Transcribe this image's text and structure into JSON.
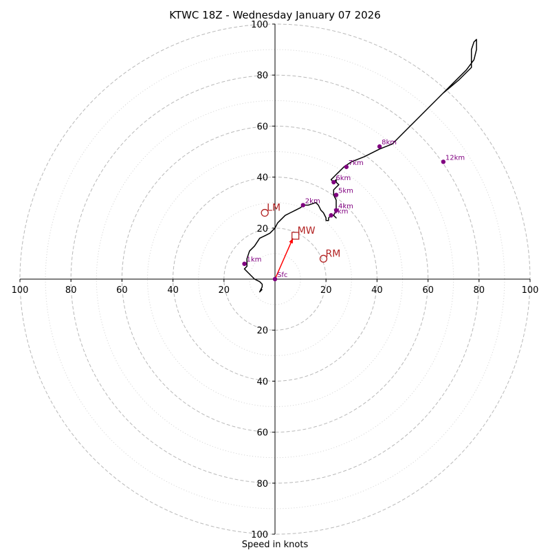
{
  "chart_data": {
    "type": "line",
    "title": "KTWC 18Z - Wednesday January 07 2026",
    "xlabel": "Speed in knots",
    "ylabel": "",
    "xlim": [
      -100,
      100
    ],
    "ylim": [
      -100,
      100
    ],
    "axis_tick_labels": [
      "100",
      "80",
      "60",
      "40",
      "20",
      "20",
      "40",
      "60",
      "80",
      "100"
    ],
    "axis_tick_values": [
      -100,
      -80,
      -60,
      -40,
      -20,
      20,
      40,
      60,
      80,
      100
    ],
    "rings": {
      "major": [
        20,
        40,
        60,
        80,
        100
      ],
      "minor": [
        10,
        30,
        50,
        70,
        90
      ]
    },
    "colors": {
      "trace": "#000000",
      "height_marker": "#800080",
      "motion": "#b22222",
      "mean_wind_vector": "#ff0000",
      "ring": "#b8b8b8"
    },
    "trace": {
      "x": [
        -5,
        -6,
        -5,
        -5,
        -6,
        -8,
        -10,
        -12,
        -11,
        -11,
        -10,
        -8,
        -6,
        -4,
        -2,
        0,
        1,
        2,
        4,
        6,
        8,
        10,
        11,
        13,
        16,
        17,
        18,
        19,
        20,
        20,
        21,
        21,
        22,
        23,
        24,
        23,
        24,
        24,
        24,
        23,
        23,
        24,
        25,
        24,
        24,
        23,
        22,
        23,
        24,
        25,
        26,
        27,
        30,
        35,
        41,
        46,
        50,
        55,
        60,
        65,
        70,
        75,
        78,
        79,
        79,
        78,
        77,
        77,
        72,
        66
      ],
      "y": [
        -4,
        -5,
        -3,
        -2,
        -1,
        0,
        2,
        4,
        5,
        8,
        11,
        13,
        16,
        17,
        18,
        20,
        22,
        23,
        25,
        26,
        27,
        28,
        29,
        29,
        30,
        29,
        27,
        26,
        24,
        23,
        23,
        24,
        25,
        25,
        24,
        25,
        27,
        28,
        31,
        33,
        35,
        36,
        37,
        38,
        39,
        38,
        39,
        40,
        41,
        42,
        43,
        44,
        46,
        48,
        51,
        53,
        57,
        62,
        67,
        72,
        77,
        82,
        86,
        90,
        94,
        93,
        90,
        83,
        78,
        73
      ]
    },
    "height_markers": [
      {
        "label": "Sfc",
        "x": 0,
        "y": 0
      },
      {
        "label": "1km",
        "x": -12,
        "y": 6
      },
      {
        "label": "2km",
        "x": 11,
        "y": 29
      },
      {
        "label": "3km",
        "x": 22,
        "y": 25
      },
      {
        "label": "4km",
        "x": 24,
        "y": 27
      },
      {
        "label": "5km",
        "x": 24,
        "y": 33
      },
      {
        "label": "6km",
        "x": 23,
        "y": 38
      },
      {
        "label": "7km",
        "x": 28,
        "y": 44
      },
      {
        "label": "8km",
        "x": 41,
        "y": 52
      },
      {
        "label": "12km",
        "x": 66,
        "y": 46
      }
    ],
    "storm_motion": [
      {
        "label": "LM",
        "x": -4,
        "y": 26,
        "marker": "circle"
      },
      {
        "label": "MW",
        "x": 8,
        "y": 17,
        "marker": "square"
      },
      {
        "label": "RM",
        "x": 19,
        "y": 8,
        "marker": "circle"
      }
    ],
    "mean_wind_vector": {
      "from": [
        0,
        0
      ],
      "to": [
        7,
        16
      ]
    }
  }
}
